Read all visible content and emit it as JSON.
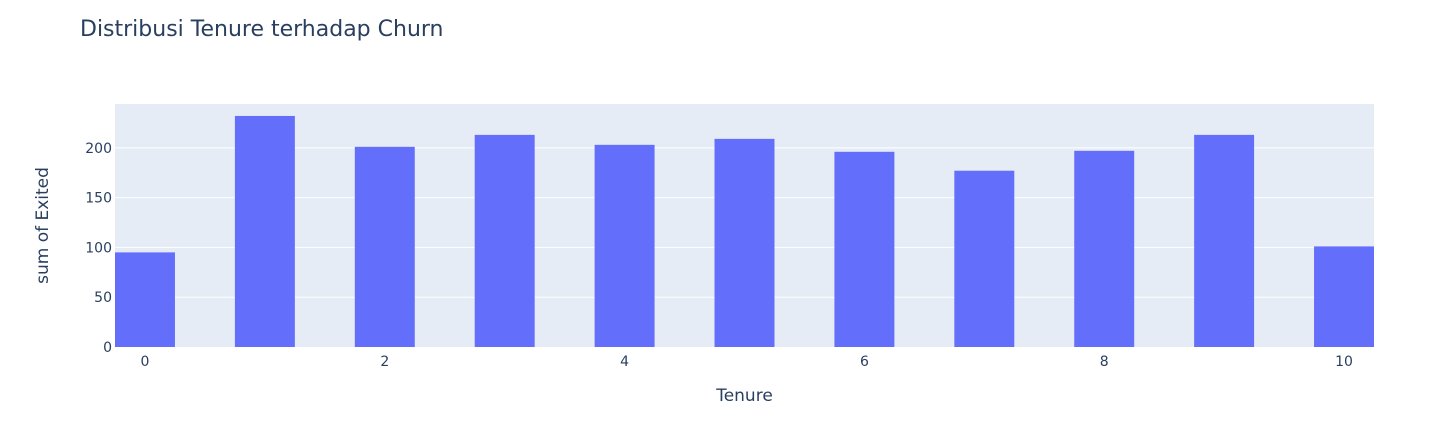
{
  "chart_data": {
    "type": "bar",
    "title": "Distribusi Tenure terhadap Churn",
    "xlabel": "Tenure",
    "ylabel": "sum of Exited",
    "x": [
      0,
      1,
      2,
      3,
      4,
      5,
      6,
      7,
      8,
      9,
      10
    ],
    "values": [
      95,
      232,
      201,
      213,
      203,
      209,
      196,
      177,
      197,
      213,
      101
    ],
    "xlim": [
      -0.25,
      10.25
    ],
    "ylim": [
      0,
      244
    ],
    "xticks": [
      0,
      2,
      4,
      6,
      8,
      10
    ],
    "yticks": [
      0,
      50,
      100,
      150,
      200
    ],
    "grid": true,
    "bar_color": "#636efa",
    "plot_background": "#e5ecf6",
    "text_color": "#2a3f5f"
  }
}
